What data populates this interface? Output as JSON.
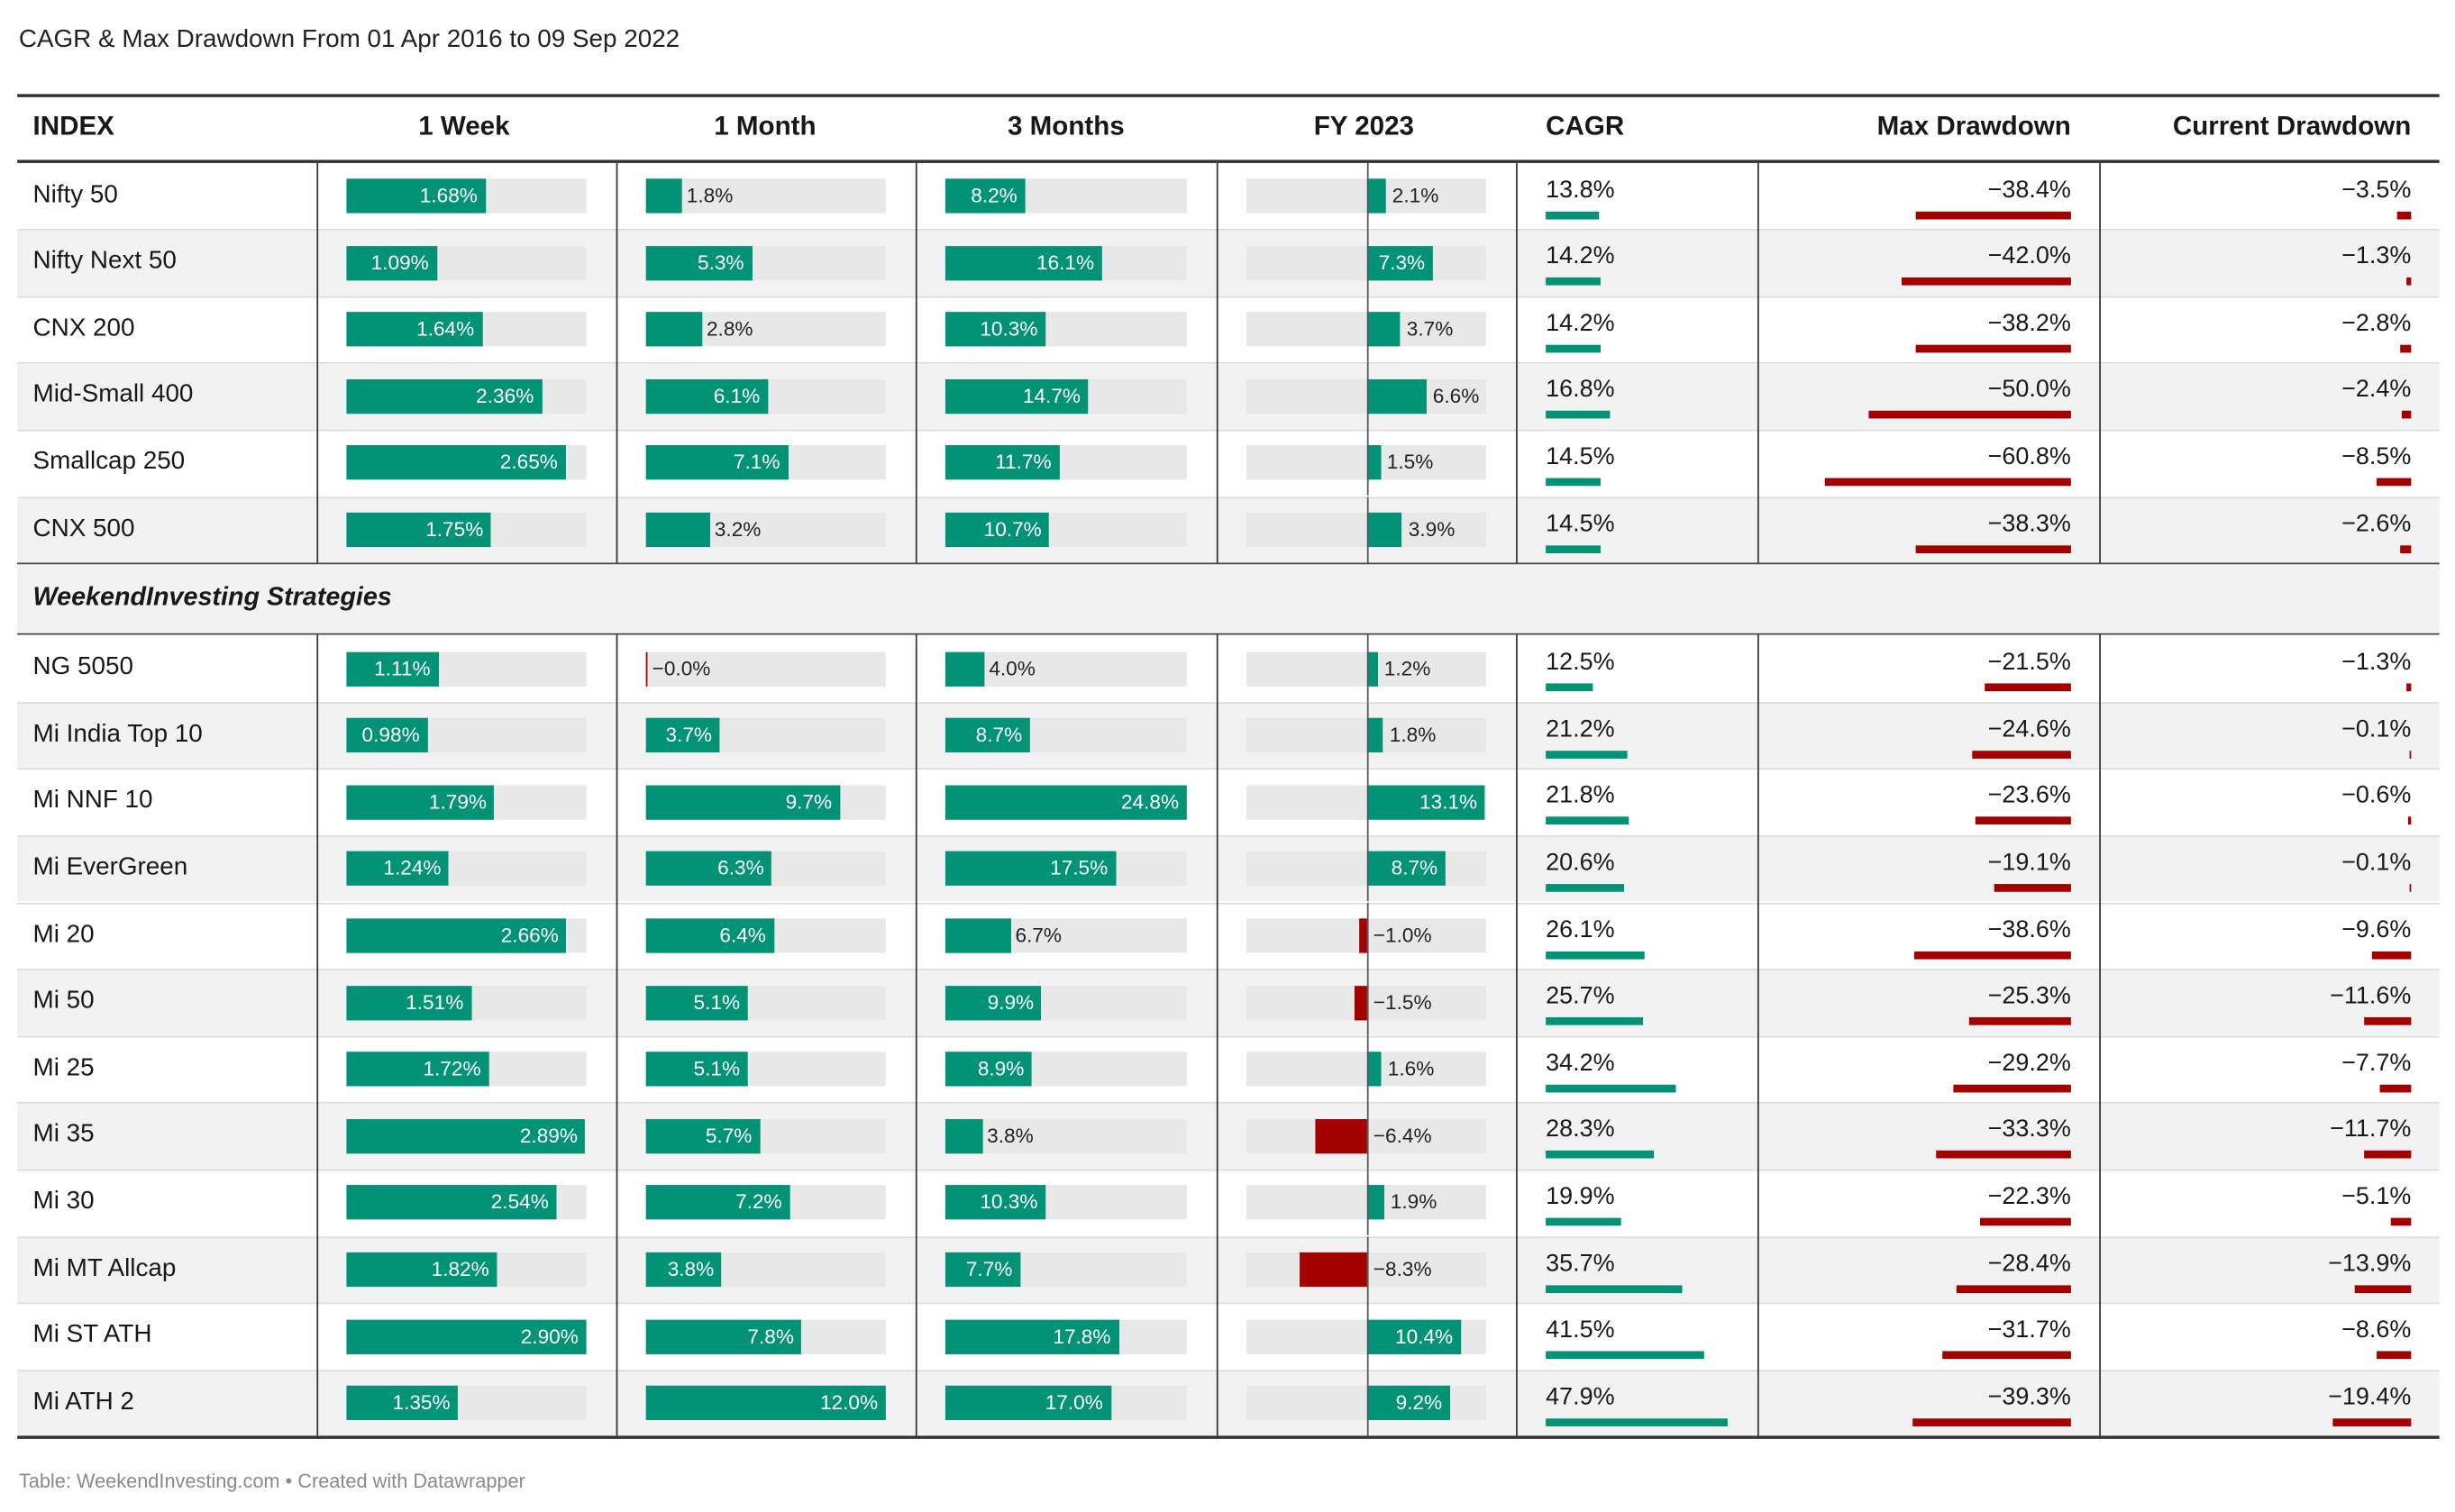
{
  "title": "CAGR & Max Drawdown From 01 Apr 2016 to 09 Sep 2022",
  "footer": "Table: WeekendInvesting.com • Created with Datawrapper",
  "colors": {
    "positive": "#029377",
    "negative": "#a50000",
    "track": "#e8e8e8",
    "band": "#f2f2f2"
  },
  "chart_data": {
    "type": "table",
    "columns": [
      "INDEX",
      "1 Week",
      "1 Month",
      "3 Months",
      "FY 2023",
      "CAGR",
      "Max Drawdown",
      "Current Drawdown"
    ],
    "groups": [
      {
        "name": "",
        "rows": [
          {
            "name": "Nifty 50",
            "week": 1.68,
            "month": 1.8,
            "three_months": 8.2,
            "fy2023": 2.1,
            "cagr": 13.8,
            "max_drawdown": -38.4,
            "current_drawdown": -3.5
          },
          {
            "name": "Nifty Next 50",
            "week": 1.09,
            "month": 5.3,
            "three_months": 16.1,
            "fy2023": 7.3,
            "cagr": 14.2,
            "max_drawdown": -42.0,
            "current_drawdown": -1.3
          },
          {
            "name": "CNX 200",
            "week": 1.64,
            "month": 2.8,
            "three_months": 10.3,
            "fy2023": 3.7,
            "cagr": 14.2,
            "max_drawdown": -38.2,
            "current_drawdown": -2.8
          },
          {
            "name": "Mid-Small 400",
            "week": 2.36,
            "month": 6.1,
            "three_months": 14.7,
            "fy2023": 6.6,
            "cagr": 16.8,
            "max_drawdown": -50.0,
            "current_drawdown": -2.4
          },
          {
            "name": "Smallcap 250",
            "week": 2.65,
            "month": 7.1,
            "three_months": 11.7,
            "fy2023": 1.5,
            "cagr": 14.5,
            "max_drawdown": -60.8,
            "current_drawdown": -8.5
          },
          {
            "name": "CNX 500",
            "week": 1.75,
            "month": 3.2,
            "three_months": 10.7,
            "fy2023": 3.9,
            "cagr": 14.5,
            "max_drawdown": -38.3,
            "current_drawdown": -2.6
          }
        ]
      },
      {
        "name": "WeekendInvesting Strategies",
        "rows": [
          {
            "name": "NG 5050",
            "week": 1.11,
            "month": -0.0,
            "three_months": 4.0,
            "fy2023": 1.2,
            "cagr": 12.5,
            "max_drawdown": -21.5,
            "current_drawdown": -1.3
          },
          {
            "name": "Mi India Top 10",
            "week": 0.98,
            "month": 3.7,
            "three_months": 8.7,
            "fy2023": 1.8,
            "cagr": 21.2,
            "max_drawdown": -24.6,
            "current_drawdown": -0.1
          },
          {
            "name": "Mi NNF 10",
            "week": 1.79,
            "month": 9.7,
            "three_months": 24.8,
            "fy2023": 13.1,
            "cagr": 21.8,
            "max_drawdown": -23.6,
            "current_drawdown": -0.6
          },
          {
            "name": "Mi EverGreen",
            "week": 1.24,
            "month": 6.3,
            "three_months": 17.5,
            "fy2023": 8.7,
            "cagr": 20.6,
            "max_drawdown": -19.1,
            "current_drawdown": -0.1
          },
          {
            "name": "Mi 20",
            "week": 2.66,
            "month": 6.4,
            "three_months": 6.7,
            "fy2023": -1.0,
            "cagr": 26.1,
            "max_drawdown": -38.6,
            "current_drawdown": -9.6
          },
          {
            "name": "Mi 50",
            "week": 1.51,
            "month": 5.1,
            "three_months": 9.9,
            "fy2023": -1.5,
            "cagr": 25.7,
            "max_drawdown": -25.3,
            "current_drawdown": -11.6
          },
          {
            "name": "Mi 25",
            "week": 1.72,
            "month": 5.1,
            "three_months": 8.9,
            "fy2023": 1.6,
            "cagr": 34.2,
            "max_drawdown": -29.2,
            "current_drawdown": -7.7
          },
          {
            "name": "Mi 35",
            "week": 2.89,
            "month": 5.7,
            "three_months": 3.8,
            "fy2023": -6.4,
            "cagr": 28.3,
            "max_drawdown": -33.3,
            "current_drawdown": -11.7
          },
          {
            "name": "Mi 30",
            "week": 2.54,
            "month": 7.2,
            "three_months": 10.3,
            "fy2023": 1.9,
            "cagr": 19.9,
            "max_drawdown": -22.3,
            "current_drawdown": -5.1
          },
          {
            "name": "Mi MT Allcap",
            "week": 1.82,
            "month": 3.8,
            "three_months": 7.7,
            "fy2023": -8.3,
            "cagr": 35.7,
            "max_drawdown": -28.4,
            "current_drawdown": -13.9
          },
          {
            "name": "Mi ST ATH",
            "week": 2.9,
            "month": 7.8,
            "three_months": 17.8,
            "fy2023": 10.4,
            "cagr": 41.5,
            "max_drawdown": -31.7,
            "current_drawdown": -8.6
          },
          {
            "name": "Mi ATH 2",
            "week": 1.35,
            "month": 12.0,
            "three_months": 17.0,
            "fy2023": 9.2,
            "cagr": 47.9,
            "max_drawdown": -39.3,
            "current_drawdown": -19.4
          }
        ]
      }
    ]
  }
}
